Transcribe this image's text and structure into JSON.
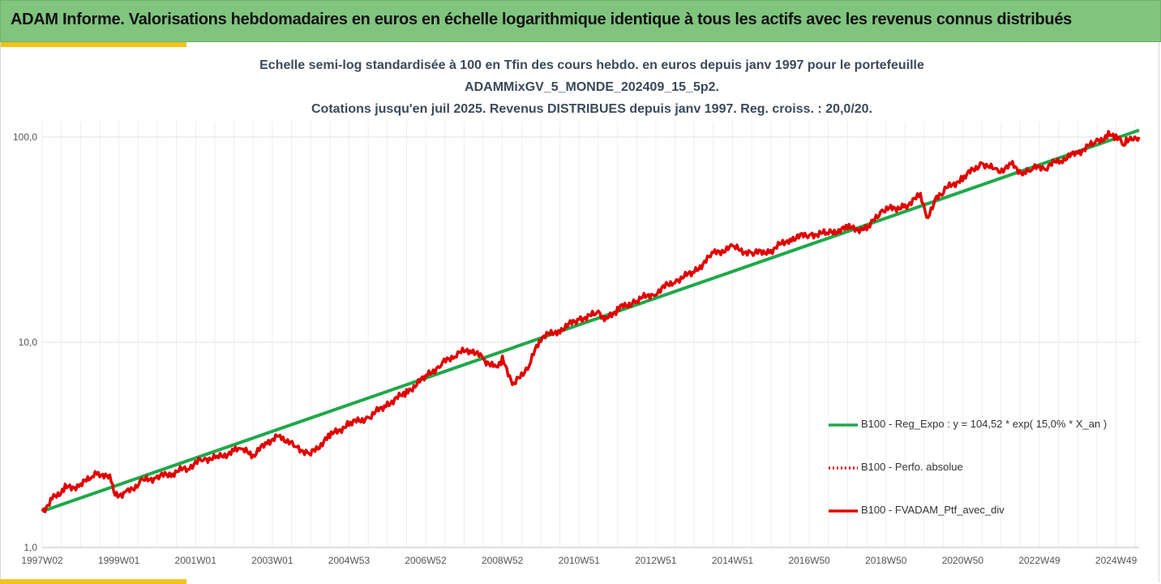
{
  "banner": {
    "title": "ADAM Informe. Valorisations hebdomadaires en euros en échelle logarithmique identique à tous les actifs avec les revenus connus distribués"
  },
  "colors": {
    "banner_bg": "#80c47e",
    "accent": "#f2c31a",
    "regression": "#1fa84a",
    "portfolio": "#e00000"
  },
  "chart_data": {
    "type": "line",
    "y_scale": "log",
    "title_lines": [
      "Echelle semi-log standardisée à 100 en Tfin des cours hebdo.  en euros depuis janv 1997 pour le portefeuille",
      "ADAMMixGV_5_MONDE_202409_15_5p2.",
      "Cotations  jusqu'en juil 2025. Revenus DISTRIBUES depuis janv 1997. Reg. croiss. : 20,0/20."
    ],
    "xlabel": "",
    "ylabel": "",
    "ylim": [
      1,
      130
    ],
    "xlim": [
      1997.0,
      2025.6
    ],
    "y_ticks": [
      {
        "value": 1,
        "label": "1,0"
      },
      {
        "value": 10,
        "label": "10,0"
      },
      {
        "value": 100,
        "label": "100,0"
      }
    ],
    "x_ticks": [
      {
        "value": 1997.0,
        "label": "1997W02"
      },
      {
        "value": 1999.0,
        "label": "1999W01"
      },
      {
        "value": 2001.0,
        "label": "2001W01"
      },
      {
        "value": 2003.0,
        "label": "2003W01"
      },
      {
        "value": 2005.0,
        "label": "2004W53"
      },
      {
        "value": 2007.0,
        "label": "2006W52"
      },
      {
        "value": 2009.0,
        "label": "2008W52"
      },
      {
        "value": 2011.0,
        "label": "2010W51"
      },
      {
        "value": 2013.0,
        "label": "2012W51"
      },
      {
        "value": 2015.0,
        "label": "2014W51"
      },
      {
        "value": 2017.0,
        "label": "2016W50"
      },
      {
        "value": 2019.0,
        "label": "2018W50"
      },
      {
        "value": 2021.0,
        "label": "2020W50"
      },
      {
        "value": 2023.0,
        "label": "2022W49"
      },
      {
        "value": 2025.0,
        "label": "2024W49"
      }
    ],
    "grid": "vertical-and-horizontal",
    "legend_position": "lower-right",
    "series": [
      {
        "name": "B100 - Reg_Expo : y = 104,52 * exp( 15,0% *  X_an )",
        "style": "solid",
        "color": "#1fa84a",
        "x": [
          1997.0,
          2025.6
        ],
        "y": [
          1.5,
          108
        ]
      },
      {
        "name": "B100 - Perfo. absolue",
        "style": "dotted",
        "color": "#e00000",
        "x": [],
        "y": []
      },
      {
        "name": "B100 - FVADAM_Ptf_avec_div",
        "style": "solid",
        "color": "#e00000",
        "x": [
          1997.0,
          1997.3,
          1997.6,
          1998.0,
          1998.3,
          1998.5,
          1998.8,
          1998.9,
          1999.2,
          1999.6,
          2000.0,
          2000.4,
          2000.8,
          2001.2,
          2001.6,
          2002.0,
          2002.2,
          2002.5,
          2002.9,
          2003.2,
          2003.6,
          2004.0,
          2004.5,
          2005.0,
          2005.5,
          2006.0,
          2006.5,
          2007.0,
          2007.4,
          2007.8,
          2008.2,
          2008.5,
          2008.8,
          2009.0,
          2009.3,
          2009.7,
          2010.0,
          2010.5,
          2011.0,
          2011.5,
          2011.7,
          2012.0,
          2012.5,
          2013.0,
          2013.5,
          2014.0,
          2014.5,
          2015.0,
          2015.5,
          2016.0,
          2016.5,
          2017.0,
          2017.5,
          2018.0,
          2018.5,
          2018.9,
          2019.5,
          2019.9,
          2020.1,
          2020.25,
          2020.5,
          2021.0,
          2021.5,
          2021.9,
          2022.3,
          2022.6,
          2022.8,
          2023.2,
          2023.6,
          2024.0,
          2024.5,
          2024.8,
          2025.0,
          2025.2,
          2025.3,
          2025.45,
          2025.6
        ],
        "y": [
          1.5,
          1.75,
          1.95,
          2.0,
          2.25,
          2.3,
          2.15,
          1.8,
          1.85,
          2.1,
          2.2,
          2.3,
          2.45,
          2.7,
          2.75,
          2.95,
          3.0,
          2.8,
          3.3,
          3.5,
          3.1,
          2.85,
          3.5,
          4.0,
          4.3,
          5.0,
          5.7,
          6.8,
          7.8,
          8.8,
          9.2,
          8.3,
          7.5,
          8.2,
          6.2,
          7.8,
          10.5,
          11.5,
          13.0,
          13.8,
          12.8,
          14.5,
          16.0,
          17.5,
          20.0,
          22.0,
          27.0,
          29.0,
          27.0,
          28.0,
          32.0,
          33.5,
          34.0,
          36.0,
          35.5,
          44.0,
          46.0,
          52.0,
          40.0,
          48.0,
          55.0,
          63.0,
          75.0,
          68.0,
          73.0,
          66.0,
          70.0,
          72.0,
          78.0,
          84.0,
          95.0,
          102.0,
          100.0,
          92.0,
          98.0,
          100.0,
          100.0
        ]
      }
    ]
  }
}
